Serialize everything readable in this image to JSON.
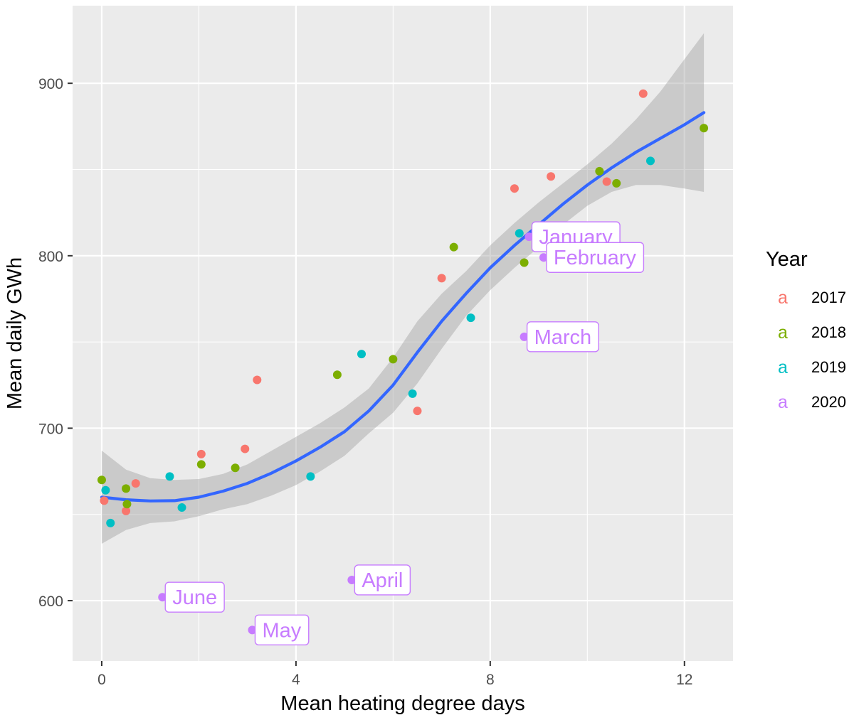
{
  "chart_data": {
    "type": "scatter",
    "xlabel": "Mean heating degree days",
    "ylabel": "Mean daily GWh",
    "xlim": [
      -0.6,
      13.0
    ],
    "ylim": [
      565,
      945
    ],
    "x_ticks": [
      0,
      4,
      8,
      12
    ],
    "y_ticks": [
      600,
      700,
      800,
      900
    ],
    "x_minor": [
      2,
      6,
      10
    ],
    "y_minor": [
      650,
      750,
      850
    ],
    "grid": true,
    "legend": {
      "title": "Year",
      "position": "right",
      "key_glyph": "a",
      "entries": [
        {
          "name": "2017",
          "color": "#F8766D"
        },
        {
          "name": "2018",
          "color": "#7CAE00"
        },
        {
          "name": "2019",
          "color": "#00BFC4"
        },
        {
          "name": "2020",
          "color": "#C77CFF"
        }
      ]
    },
    "series": [
      {
        "name": "2017",
        "color": "#F8766D",
        "points": [
          [
            0.05,
            658
          ],
          [
            0.5,
            652
          ],
          [
            0.7,
            668
          ],
          [
            2.05,
            685
          ],
          [
            2.95,
            688
          ],
          [
            3.2,
            728
          ],
          [
            6.5,
            710
          ],
          [
            7.0,
            787
          ],
          [
            8.5,
            839
          ],
          [
            9.25,
            846
          ],
          [
            10.4,
            843
          ],
          [
            11.15,
            894
          ]
        ]
      },
      {
        "name": "2018",
        "color": "#7CAE00",
        "points": [
          [
            0.0,
            670
          ],
          [
            0.5,
            665
          ],
          [
            0.52,
            656
          ],
          [
            2.05,
            679
          ],
          [
            2.75,
            677
          ],
          [
            4.85,
            731
          ],
          [
            6.0,
            740
          ],
          [
            7.25,
            805
          ],
          [
            8.7,
            796
          ],
          [
            10.25,
            849
          ],
          [
            10.6,
            842
          ],
          [
            12.4,
            874
          ]
        ]
      },
      {
        "name": "2019",
        "color": "#00BFC4",
        "points": [
          [
            0.08,
            664
          ],
          [
            0.18,
            645
          ],
          [
            1.4,
            672
          ],
          [
            1.65,
            654
          ],
          [
            4.3,
            672
          ],
          [
            5.35,
            743
          ],
          [
            6.4,
            720
          ],
          [
            7.6,
            764
          ],
          [
            8.6,
            813
          ],
          [
            11.3,
            855
          ]
        ]
      },
      {
        "name": "2020",
        "color": "#C77CFF",
        "points": [
          [
            8.8,
            811
          ],
          [
            9.1,
            799
          ],
          [
            8.7,
            753
          ],
          [
            5.15,
            612
          ],
          [
            3.1,
            583
          ],
          [
            1.25,
            602
          ]
        ]
      }
    ],
    "labels": [
      {
        "text": "January",
        "x": 8.8,
        "y": 811
      },
      {
        "text": "February",
        "x": 9.1,
        "y": 799
      },
      {
        "text": "March",
        "x": 8.7,
        "y": 753
      },
      {
        "text": "April",
        "x": 5.15,
        "y": 612
      },
      {
        "text": "May",
        "x": 3.1,
        "y": 583
      },
      {
        "text": "June",
        "x": 1.25,
        "y": 602
      }
    ],
    "smooth": {
      "method": "loess",
      "color": "#3366FF",
      "band_color": "#999999",
      "curve": [
        [
          0,
          660
        ],
        [
          0.5,
          658.5
        ],
        [
          1,
          657.8
        ],
        [
          1.5,
          658
        ],
        [
          2,
          660
        ],
        [
          2.5,
          663.5
        ],
        [
          3,
          668
        ],
        [
          3.5,
          674
        ],
        [
          4,
          681
        ],
        [
          4.5,
          689
        ],
        [
          5,
          698
        ],
        [
          5.5,
          710
        ],
        [
          6,
          725
        ],
        [
          6.5,
          744
        ],
        [
          7,
          762
        ],
        [
          7.5,
          778
        ],
        [
          8,
          793
        ],
        [
          8.5,
          806
        ],
        [
          9,
          818
        ],
        [
          9.5,
          830
        ],
        [
          10,
          841
        ],
        [
          10.5,
          851
        ],
        [
          11,
          860
        ],
        [
          11.5,
          868
        ],
        [
          12,
          876
        ],
        [
          12.4,
          883
        ]
      ],
      "upper": [
        [
          0,
          687
        ],
        [
          0.5,
          676
        ],
        [
          1,
          671
        ],
        [
          1.5,
          670
        ],
        [
          2,
          670.5
        ],
        [
          2.5,
          673.5
        ],
        [
          3,
          679
        ],
        [
          3.5,
          687
        ],
        [
          4,
          695
        ],
        [
          4.5,
          703
        ],
        [
          5,
          712
        ],
        [
          5.5,
          723
        ],
        [
          6,
          741
        ],
        [
          6.5,
          762
        ],
        [
          7,
          778
        ],
        [
          7.5,
          791
        ],
        [
          8,
          806
        ],
        [
          8.5,
          819
        ],
        [
          9,
          831
        ],
        [
          9.5,
          842
        ],
        [
          10,
          853
        ],
        [
          10.5,
          865
        ],
        [
          11,
          879
        ],
        [
          11.5,
          895
        ],
        [
          12,
          914
        ],
        [
          12.4,
          929
        ]
      ],
      "lower": [
        [
          0,
          633
        ],
        [
          0.5,
          641
        ],
        [
          1,
          645
        ],
        [
          1.5,
          646
        ],
        [
          2,
          649
        ],
        [
          2.5,
          653
        ],
        [
          3,
          656
        ],
        [
          3.5,
          661
        ],
        [
          4,
          667
        ],
        [
          4.5,
          675
        ],
        [
          5,
          684
        ],
        [
          5.5,
          697
        ],
        [
          6,
          709
        ],
        [
          6.5,
          726
        ],
        [
          7,
          746
        ],
        [
          7.5,
          765
        ],
        [
          8,
          780
        ],
        [
          8.5,
          793
        ],
        [
          9,
          805
        ],
        [
          9.5,
          818
        ],
        [
          10,
          829
        ],
        [
          10.5,
          837
        ],
        [
          11,
          841
        ],
        [
          11.5,
          841
        ],
        [
          12,
          839
        ],
        [
          12.4,
          837
        ]
      ]
    }
  }
}
